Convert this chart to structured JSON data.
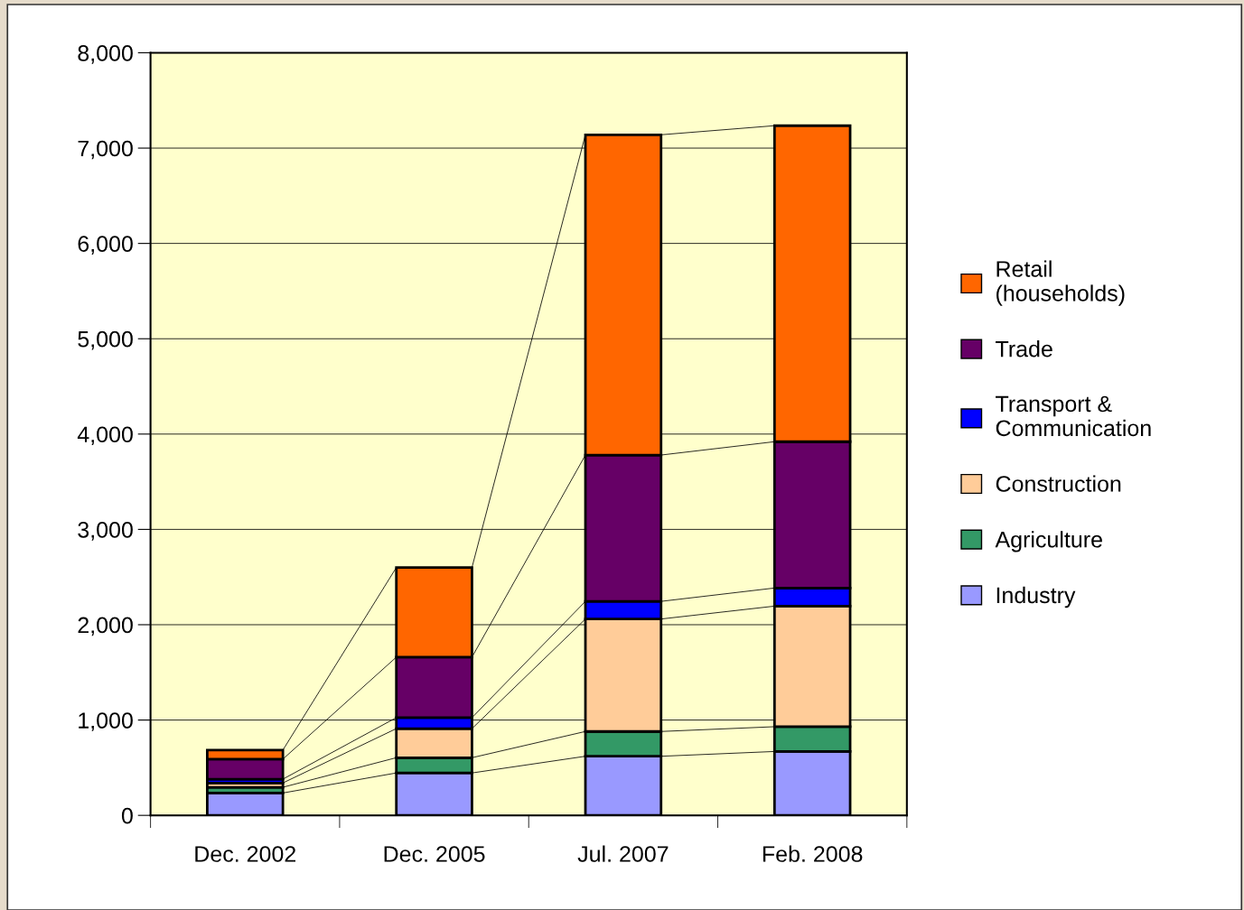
{
  "chart_data": {
    "type": "bar",
    "stacked": true,
    "categories": [
      "Dec. 2002",
      "Dec. 2005",
      "Jul. 2007",
      "Feb. 2008"
    ],
    "series": [
      {
        "name": "Industry",
        "color": "#9999ff",
        "values": [
          235,
          445,
          620,
          670
        ]
      },
      {
        "name": "Agriculture",
        "color": "#339966",
        "values": [
          60,
          160,
          260,
          260
        ]
      },
      {
        "name": "Construction",
        "color": "#ffcc99",
        "values": [
          45,
          305,
          1180,
          1265
        ]
      },
      {
        "name": "Transport & Communication",
        "color": "#0000ff",
        "values": [
          40,
          115,
          185,
          190
        ]
      },
      {
        "name": "Trade",
        "color": "#660066",
        "values": [
          210,
          635,
          1535,
          1535
        ]
      },
      {
        "name": "Retail (households)",
        "color": "#ff6600",
        "values": [
          95,
          940,
          3360,
          3315
        ]
      }
    ],
    "ylim": [
      0,
      8000
    ],
    "yticks": [
      {
        "value": 0,
        "label": "0"
      },
      {
        "value": 1000,
        "label": "1,000"
      },
      {
        "value": 2000,
        "label": "2,000"
      },
      {
        "value": 3000,
        "label": "3,000"
      },
      {
        "value": 4000,
        "label": "4,000"
      },
      {
        "value": 5000,
        "label": "5,000"
      },
      {
        "value": 6000,
        "label": "6,000"
      },
      {
        "value": 7000,
        "label": "7,000"
      },
      {
        "value": 8000,
        "label": "8,000"
      }
    ],
    "grid": "y",
    "legend": "right"
  }
}
